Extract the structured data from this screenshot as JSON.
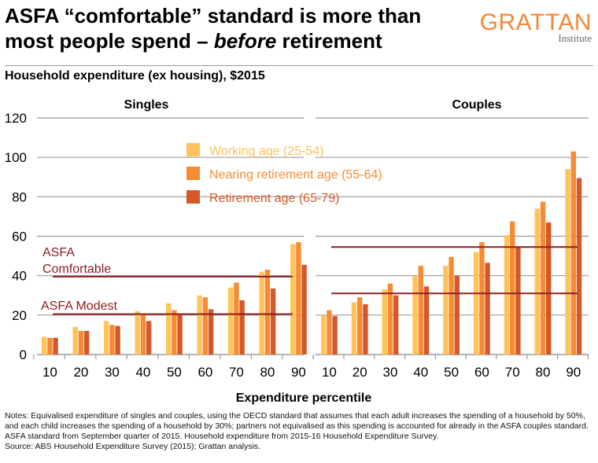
{
  "header": {
    "title_part1": "ASFA “comfortable” standard is more than most people spend – ",
    "title_emphasis": "before",
    "title_part2": " retirement",
    "subtitle": "Household expenditure (ex housing), $2015",
    "logo_word": "GRATTAN",
    "logo_sub": "Institute"
  },
  "chart_data": {
    "type": "bar",
    "xlabel": "Expenditure percentile",
    "ylim": [
      0,
      120
    ],
    "yticks": [
      0,
      20,
      40,
      60,
      80,
      100,
      120
    ],
    "categories": [
      "10",
      "20",
      "30",
      "40",
      "50",
      "60",
      "70",
      "80",
      "90"
    ],
    "legend": {
      "placement": "top-center",
      "entries": [
        "Working age (25-54)",
        "Nearing retirement age (55-64)",
        "Retirement age (65-79)"
      ]
    },
    "series_colors": [
      "#ffc35a",
      "#f68b33",
      "#d4582a"
    ],
    "panels": [
      {
        "title": "Singles",
        "series": [
          {
            "name": "Working age (25-54)",
            "values": [
              9,
              14,
              17,
              22,
              26,
              30,
              34,
              42,
              56
            ]
          },
          {
            "name": "Nearing retirement age (55-64)",
            "values": [
              8.5,
              12,
              15,
              20.5,
              22.5,
              29,
              36.5,
              43,
              57
            ]
          },
          {
            "name": "Retirement age (65-79)",
            "values": [
              8.5,
              12,
              14.5,
              17,
              20.5,
              23,
              27.5,
              33.5,
              45.5
            ]
          }
        ],
        "reference_lines": [
          {
            "label_line1": "ASFA",
            "label_line2": "Comfortable",
            "value": 39.5
          },
          {
            "label_line1": "ASFA Modest",
            "label_line2": "",
            "value": 20.5
          }
        ]
      },
      {
        "title": "Couples",
        "series": [
          {
            "name": "Working age (25-54)",
            "values": [
              20,
              26.5,
              33,
              40,
              45,
              52,
              60.5,
              74,
              94
            ]
          },
          {
            "name": "Nearing retirement age (55-64)",
            "values": [
              22.5,
              29,
              36,
              45,
              49.5,
              57,
              67.5,
              77.5,
              103
            ]
          },
          {
            "name": "Retirement age (65-79)",
            "values": [
              19.5,
              25.5,
              30,
              34.5,
              40,
              46.5,
              54.5,
              67,
              89.5
            ]
          }
        ],
        "reference_lines": [
          {
            "value": 54.5
          },
          {
            "value": 31
          }
        ]
      }
    ],
    "ref_line_color": "#8b1e22",
    "grid": true
  },
  "notes": {
    "text": "Notes: Equivalised expenditure of singles and couples, using the OECD standard that assumes that each adult increases the spending of a household by 50%, and each child increases the spending of a household by 30%; partners not equivalised as this spending is accounted for already in the ASFA couples standard. ASFA standard from September quarter of 2015. Household expenditure from 2015-16 Household Expenditure Survey.",
    "source": "Source: ABS Household Expenditure Survey (2015); Grattan analysis."
  }
}
